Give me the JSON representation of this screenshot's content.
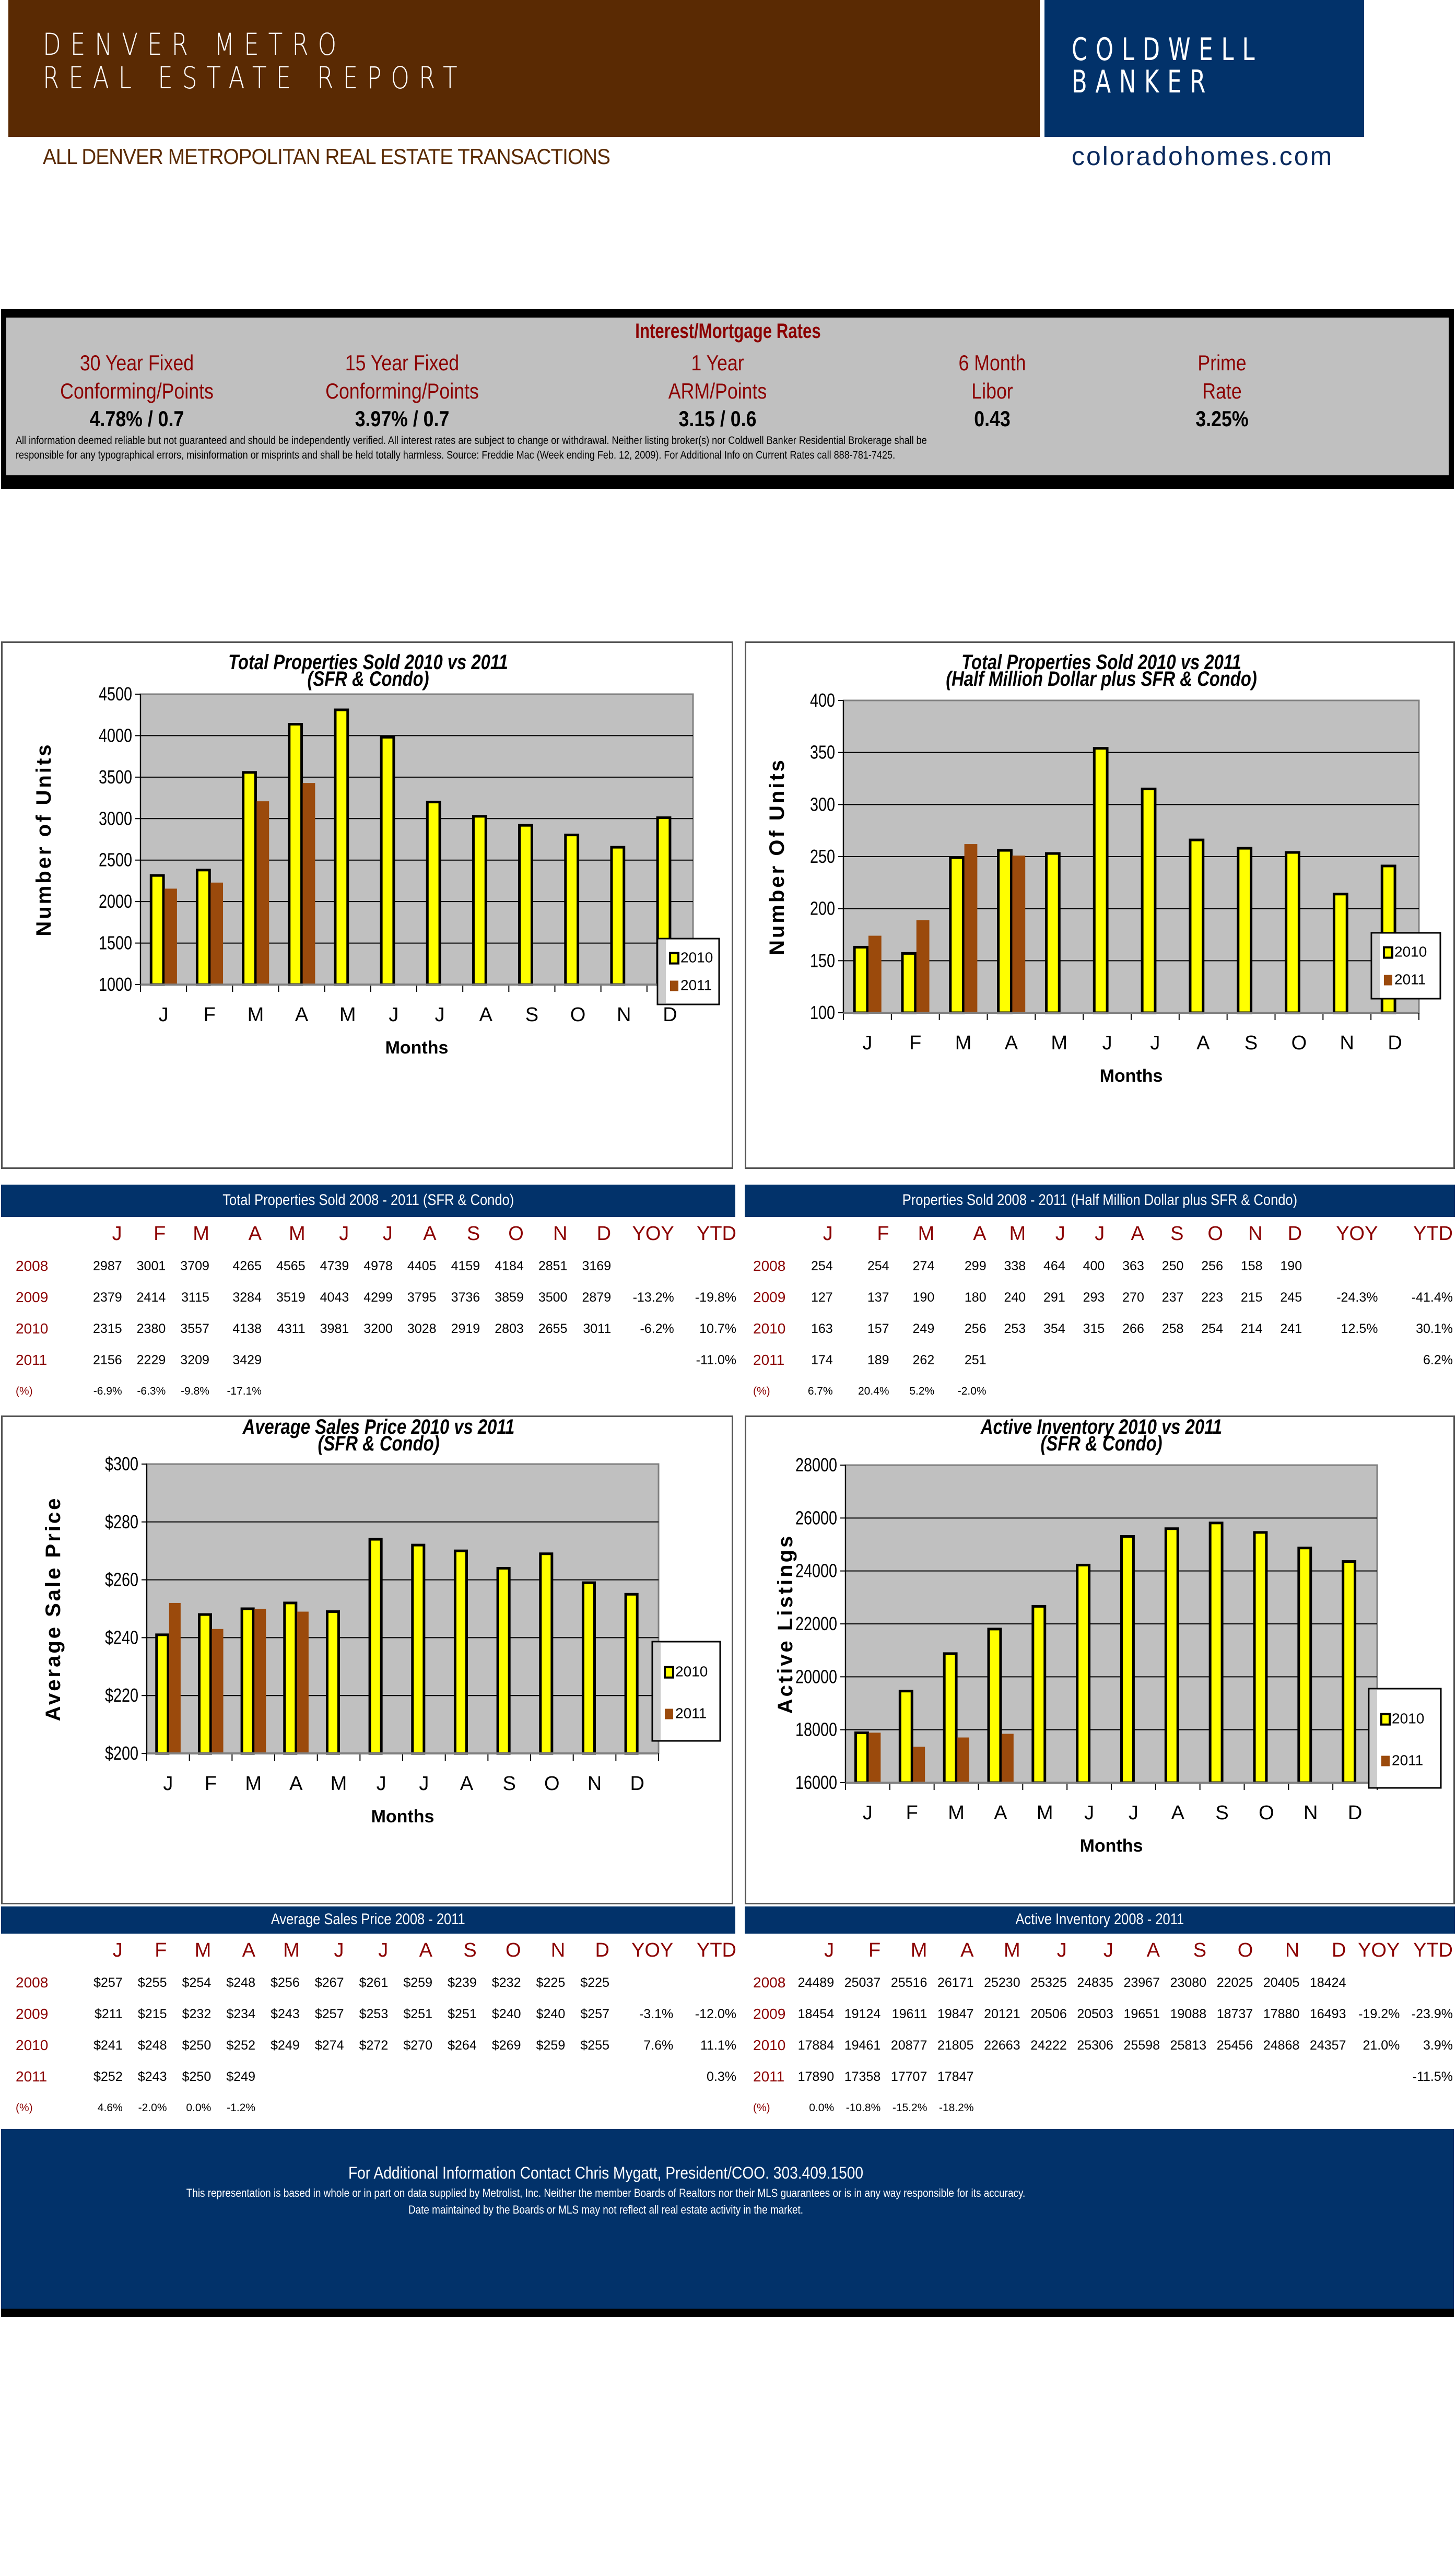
{
  "header": {
    "title_line1": "DENVER METRO",
    "title_line2": "REAL ESTATE REPORT",
    "brand_line1": "COLDWELL",
    "brand_line2": "BANKER",
    "subtitle": "ALL DENVER METROPOLITAN REAL ESTATE TRANSACTIONS",
    "website": "coloradohomes.com"
  },
  "rates": {
    "title": "Interest/Mortgage Rates",
    "items": [
      {
        "label1": "30 Year Fixed",
        "label2": "Conforming/Points",
        "value": "4.78% / 0.7"
      },
      {
        "label1": "15 Year Fixed",
        "label2": "Conforming/Points",
        "value": "3.97% / 0.7"
      },
      {
        "label1": "1 Year",
        "label2": "ARM/Points",
        "value": "3.15 / 0.6"
      },
      {
        "label1": "6 Month",
        "label2": "Libor",
        "value": "0.43"
      },
      {
        "label1": "Prime",
        "label2": "Rate",
        "value": "3.25%"
      }
    ],
    "disclaimer1": "All information deemed reliable but not guaranteed and should be independently verified. All interest rates are subject to change or withdrawal. Neither listing broker(s) nor Coldwell Banker Residential Brokerage shall be",
    "disclaimer2": "responsible for any typographical errors, misinformation or misprints and shall be held totally harmless. Source: Freddie Mac (Week ending Feb. 12, 2009). For Additional Info on Current Rates call 888-781-7425."
  },
  "colors": {
    "brown": "#5a2a03",
    "navy": "#02326a",
    "bar2010": "#ffff00",
    "bar2011": "#9b4a0c",
    "plot_bg": "#c0c0c0",
    "label_red": "#8b0000"
  },
  "chart_data": [
    {
      "id": "total_sold",
      "type": "bar",
      "title": "Total Properties Sold    2010 vs 2011",
      "subtitle": "(SFR & Condo)",
      "xlabel": "Months",
      "ylabel": "Number of Units",
      "categories": [
        "J",
        "F",
        "M",
        "A",
        "M",
        "J",
        "J",
        "A",
        "S",
        "O",
        "N",
        "D"
      ],
      "ylim": [
        1000,
        4500
      ],
      "yticks": [
        1000,
        1500,
        2000,
        2500,
        3000,
        3500,
        4000,
        4500
      ],
      "ytick_labels": [
        "1000",
        "1500",
        "2000",
        "2500",
        "3000",
        "3500",
        "4000",
        "4500"
      ],
      "grid": true,
      "legend": "right",
      "series": [
        {
          "name": "2010",
          "values": [
            2315,
            2380,
            3557,
            4138,
            4311,
            3981,
            3200,
            3028,
            2919,
            2803,
            2655,
            3011
          ]
        },
        {
          "name": "2011",
          "values": [
            2156,
            2229,
            3209,
            3429,
            null,
            null,
            null,
            null,
            null,
            null,
            null,
            null
          ]
        }
      ]
    },
    {
      "id": "half_million",
      "type": "bar",
      "title": "Total Properties Sold    2010 vs 2011",
      "subtitle": "(Half Million Dollar plus SFR & Condo)",
      "xlabel": "Months",
      "ylabel": "Number Of Units",
      "categories": [
        "J",
        "F",
        "M",
        "A",
        "M",
        "J",
        "J",
        "A",
        "S",
        "O",
        "N",
        "D"
      ],
      "ylim": [
        100,
        400
      ],
      "yticks": [
        100,
        150,
        200,
        250,
        300,
        350,
        400
      ],
      "ytick_labels": [
        "100",
        "150",
        "200",
        "250",
        "300",
        "350",
        "400"
      ],
      "grid": true,
      "legend": "right",
      "series": [
        {
          "name": "2010",
          "values": [
            163,
            157,
            249,
            256,
            253,
            354,
            315,
            266,
            258,
            254,
            214,
            241
          ]
        },
        {
          "name": "2011",
          "values": [
            174,
            189,
            262,
            251,
            null,
            null,
            null,
            null,
            null,
            null,
            null,
            null
          ]
        }
      ]
    },
    {
      "id": "avg_price",
      "type": "bar",
      "title": "Average Sales Price   2010 vs 2011",
      "subtitle": "(SFR & Condo)",
      "xlabel": "Months",
      "ylabel": "Average Sale Price",
      "categories": [
        "J",
        "F",
        "M",
        "A",
        "M",
        "J",
        "J",
        "A",
        "S",
        "O",
        "N",
        "D"
      ],
      "ylim": [
        200,
        300
      ],
      "yticks": [
        200,
        220,
        240,
        260,
        280,
        300
      ],
      "ytick_labels": [
        "$200",
        "$220",
        "$240",
        "$260",
        "$280",
        "$300"
      ],
      "grid": true,
      "legend": "right",
      "series": [
        {
          "name": "2010",
          "values": [
            241,
            248,
            250,
            252,
            249,
            274,
            272,
            270,
            264,
            269,
            259,
            255
          ]
        },
        {
          "name": "2011",
          "values": [
            252,
            243,
            250,
            249,
            null,
            null,
            null,
            null,
            null,
            null,
            null,
            null
          ]
        }
      ]
    },
    {
      "id": "inventory",
      "type": "bar",
      "title": "Active Inventory   2010 vs 2011",
      "subtitle": "(SFR & Condo)",
      "xlabel": "Months",
      "ylabel": "Active Listings",
      "categories": [
        "J",
        "F",
        "M",
        "A",
        "M",
        "J",
        "J",
        "A",
        "S",
        "O",
        "N",
        "D"
      ],
      "ylim": [
        16000,
        28000
      ],
      "yticks": [
        16000,
        18000,
        20000,
        22000,
        24000,
        26000,
        28000
      ],
      "ytick_labels": [
        "16000",
        "18000",
        "20000",
        "22000",
        "24000",
        "26000",
        "28000"
      ],
      "grid": true,
      "legend": "right",
      "series": [
        {
          "name": "2010",
          "values": [
            17884,
            19461,
            20877,
            21805,
            22663,
            24222,
            25306,
            25598,
            25813,
            25456,
            24868,
            24357
          ]
        },
        {
          "name": "2011",
          "values": [
            17890,
            17358,
            17707,
            17847,
            null,
            null,
            null,
            null,
            null,
            null,
            null,
            null
          ]
        }
      ]
    }
  ],
  "tables": [
    {
      "title": "Total Properties Sold    2008 - 2011 (SFR & Condo)",
      "columns": [
        "J",
        "F",
        "M",
        "A",
        "M",
        "J",
        "J",
        "A",
        "S",
        "O",
        "N",
        "D",
        "YOY",
        "YTD"
      ],
      "rows": [
        {
          "label": "2008",
          "cells": [
            "2987",
            "3001",
            "3709",
            "4265",
            "4565",
            "4739",
            "4978",
            "4405",
            "4159",
            "4184",
            "2851",
            "3169",
            "",
            ""
          ]
        },
        {
          "label": "2009",
          "cells": [
            "2379",
            "2414",
            "3115",
            "3284",
            "3519",
            "4043",
            "4299",
            "3795",
            "3736",
            "3859",
            "3500",
            "2879",
            "-13.2%",
            "-19.8%"
          ]
        },
        {
          "label": "2010",
          "cells": [
            "2315",
            "2380",
            "3557",
            "4138",
            "4311",
            "3981",
            "3200",
            "3028",
            "2919",
            "2803",
            "2655",
            "3011",
            "-6.2%",
            "10.7%"
          ]
        },
        {
          "label": "2011",
          "cells": [
            "2156",
            "2229",
            "3209",
            "3429",
            "",
            "",
            "",
            "",
            "",
            "",
            "",
            "",
            "",
            "-11.0%"
          ]
        },
        {
          "label": "(%)",
          "cells": [
            "-6.9%",
            "-6.3%",
            "-9.8%",
            "-17.1%",
            "",
            "",
            "",
            "",
            "",
            "",
            "",
            "",
            "",
            ""
          ]
        }
      ]
    },
    {
      "title": "Properties Sold    2008 - 2011 (Half Million Dollar plus SFR & Condo)",
      "columns": [
        "J",
        "F",
        "M",
        "A",
        "M",
        "J",
        "J",
        "A",
        "S",
        "O",
        "N",
        "D",
        "YOY",
        "YTD"
      ],
      "rows": [
        {
          "label": "2008",
          "cells": [
            "254",
            "254",
            "274",
            "299",
            "338",
            "464",
            "400",
            "363",
            "250",
            "256",
            "158",
            "190",
            "",
            ""
          ]
        },
        {
          "label": "2009",
          "cells": [
            "127",
            "137",
            "190",
            "180",
            "240",
            "291",
            "293",
            "270",
            "237",
            "223",
            "215",
            "245",
            "-24.3%",
            "-41.4%"
          ]
        },
        {
          "label": "2010",
          "cells": [
            "163",
            "157",
            "249",
            "256",
            "253",
            "354",
            "315",
            "266",
            "258",
            "254",
            "214",
            "241",
            "12.5%",
            "30.1%"
          ]
        },
        {
          "label": "2011",
          "cells": [
            "174",
            "189",
            "262",
            "251",
            "",
            "",
            "",
            "",
            "",
            "",
            "",
            "",
            "",
            "6.2%"
          ]
        },
        {
          "label": "(%)",
          "cells": [
            "6.7%",
            "20.4%",
            "5.2%",
            "-2.0%",
            "",
            "",
            "",
            "",
            "",
            "",
            "",
            "",
            "",
            ""
          ]
        }
      ]
    },
    {
      "title": "Average Sales Price   2008 - 2011",
      "columns": [
        "J",
        "F",
        "M",
        "A",
        "M",
        "J",
        "J",
        "A",
        "S",
        "O",
        "N",
        "D",
        "YOY",
        "YTD"
      ],
      "rows": [
        {
          "label": "2008",
          "cells": [
            "$257",
            "$255",
            "$254",
            "$248",
            "$256",
            "$267",
            "$261",
            "$259",
            "$239",
            "$232",
            "$225",
            "$225",
            "",
            ""
          ]
        },
        {
          "label": "2009",
          "cells": [
            "$211",
            "$215",
            "$232",
            "$234",
            "$243",
            "$257",
            "$253",
            "$251",
            "$251",
            "$240",
            "$240",
            "$257",
            "-3.1%",
            "-12.0%"
          ]
        },
        {
          "label": "2010",
          "cells": [
            "$241",
            "$248",
            "$250",
            "$252",
            "$249",
            "$274",
            "$272",
            "$270",
            "$264",
            "$269",
            "$259",
            "$255",
            "7.6%",
            "11.1%"
          ]
        },
        {
          "label": "2011",
          "cells": [
            "$252",
            "$243",
            "$250",
            "$249",
            "",
            "",
            "",
            "",
            "",
            "",
            "",
            "",
            "",
            "0.3%"
          ]
        },
        {
          "label": "(%)",
          "cells": [
            "4.6%",
            "-2.0%",
            "0.0%",
            "-1.2%",
            "",
            "",
            "",
            "",
            "",
            "",
            "",
            "",
            "",
            ""
          ]
        }
      ]
    },
    {
      "title": "Active Inventory  2008 - 2011",
      "columns": [
        "J",
        "F",
        "M",
        "A",
        "M",
        "J",
        "J",
        "A",
        "S",
        "O",
        "N",
        "D",
        "YOY",
        "YTD"
      ],
      "rows": [
        {
          "label": "2008",
          "cells": [
            "24489",
            "25037",
            "25516",
            "26171",
            "25230",
            "25325",
            "24835",
            "23967",
            "23080",
            "22025",
            "20405",
            "18424",
            "",
            ""
          ]
        },
        {
          "label": "2009",
          "cells": [
            "18454",
            "19124",
            "19611",
            "19847",
            "20121",
            "20506",
            "20503",
            "19651",
            "19088",
            "18737",
            "17880",
            "16493",
            "-19.2%",
            "-23.9%"
          ]
        },
        {
          "label": "2010",
          "cells": [
            "17884",
            "19461",
            "20877",
            "21805",
            "22663",
            "24222",
            "25306",
            "25598",
            "25813",
            "25456",
            "24868",
            "24357",
            "21.0%",
            "3.9%"
          ]
        },
        {
          "label": "2011",
          "cells": [
            "17890",
            "17358",
            "17707",
            "17847",
            "",
            "",
            "",
            "",
            "",
            "",
            "",
            "",
            "",
            "-11.5%"
          ]
        },
        {
          "label": "(%)",
          "cells": [
            "0.0%",
            "-10.8%",
            "-15.2%",
            "-18.2%",
            "",
            "",
            "",
            "",
            "",
            "",
            "",
            "",
            "",
            ""
          ]
        }
      ]
    }
  ],
  "footer": {
    "contact": "For Additional Information Contact Chris Mygatt, President/COO. 303.409.1500",
    "disclaimer1": "This representation is based in whole or in part on data supplied by Metrolist, Inc.  Neither the member Boards of Realtors nor their MLS guarantees or is in any way responsible for its accuracy.",
    "disclaimer2": "Date maintained by the Boards or MLS may not reflect all real estate activity in the market."
  }
}
